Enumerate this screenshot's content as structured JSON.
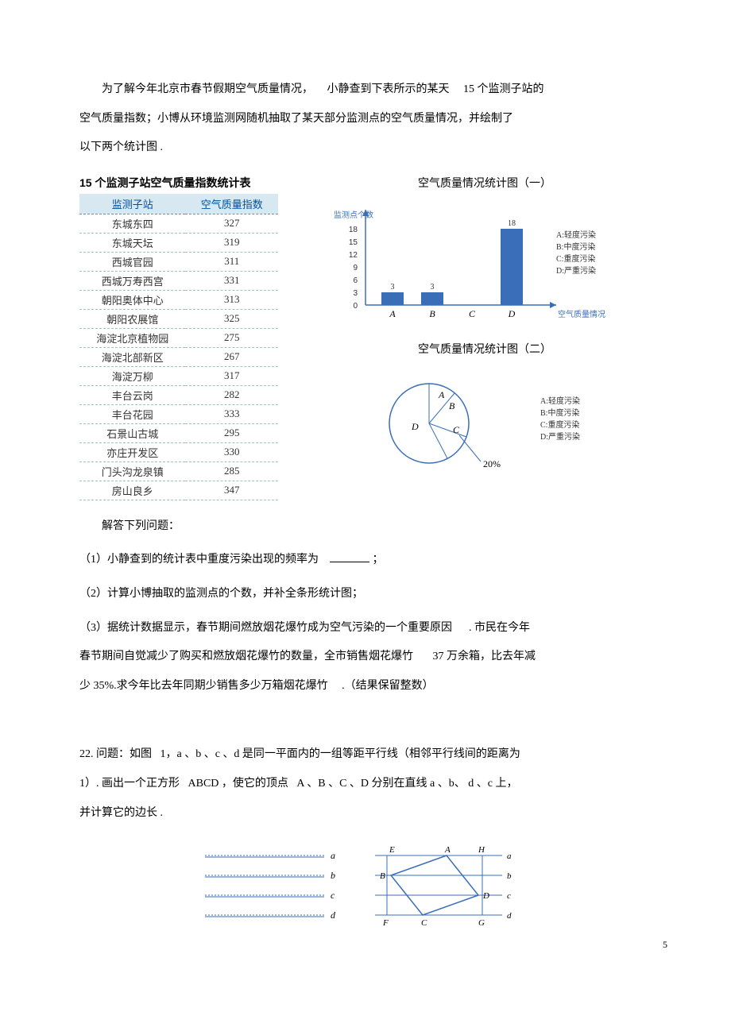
{
  "intro": {
    "p1_a": "为了解今年北京市春节假期空气质量情况，",
    "p1_b": "小静查到下表所示的某天",
    "p1_c": "15 个监测子站的",
    "p2": "空气质量指数；小博从环境监测网随机抽取了某天部分监测点的空气质量情况，并绘制了",
    "p3": "以下两个统计图  ."
  },
  "table": {
    "title": "15 个监测子站空气质量指数统计表",
    "col1": "监测子站",
    "col2": "空气质量指数",
    "rows": [
      {
        "site": "东城东四",
        "aqi": "327"
      },
      {
        "site": "东城天坛",
        "aqi": "319"
      },
      {
        "site": "西城官园",
        "aqi": "311"
      },
      {
        "site": "西城万寿西宫",
        "aqi": "331"
      },
      {
        "site": "朝阳奥体中心",
        "aqi": "313"
      },
      {
        "site": "朝阳农展馆",
        "aqi": "325"
      },
      {
        "site": "海淀北京植物园",
        "aqi": "275"
      },
      {
        "site": "海淀北部新区",
        "aqi": "267"
      },
      {
        "site": "海淀万柳",
        "aqi": "317"
      },
      {
        "site": "丰台云岗",
        "aqi": "282"
      },
      {
        "site": "丰台花园",
        "aqi": "333"
      },
      {
        "site": "石景山古城",
        "aqi": "295"
      },
      {
        "site": "亦庄开发区",
        "aqi": "330"
      },
      {
        "site": "门头沟龙泉镇",
        "aqi": "285"
      },
      {
        "site": "房山良乡",
        "aqi": "347"
      }
    ]
  },
  "chart1": {
    "title": "空气质量情况统计图（一）",
    "ylabel": "监测点个数",
    "xlabel": "空气质量情况",
    "ticks": [
      0,
      3,
      6,
      9,
      12,
      15,
      18
    ],
    "categories": [
      "A",
      "B",
      "C",
      "D"
    ],
    "values": [
      3,
      3,
      null,
      18
    ],
    "bar_color": "#3a6fb8",
    "legend": [
      "A:轻度污染",
      "B:中度污染",
      "C:重度污染",
      "D:严重污染"
    ],
    "overflow_label": "18"
  },
  "chart2": {
    "title": "空气质量情况统计图（二）",
    "labels": [
      "A",
      "B",
      "C",
      "D"
    ],
    "shown_percent": "20%",
    "legend": [
      "A:轻度污染",
      "B:中度污染",
      "C:重度污染",
      "D:严重污染"
    ],
    "colors": {
      "line": "#3a6fb8",
      "fill": "#ffffff"
    }
  },
  "questions": {
    "header": "解答下列问题：",
    "q1": "（1）小静查到的统计表中重度污染出现的频率为",
    "q1_end": "；",
    "q2": "（2）计算小博抽取的监测点的个数，并补全条形统计图；",
    "q3a": "（3）据统计数据显示，春节期间燃放烟花爆竹成为空气污染的一个重要原因",
    "q3a_end": ". 市民在今年",
    "q3b": "春节期间自觉减少了购买和燃放烟花爆竹的数量，全市销售烟花爆竹",
    "q3b_num": "37 万余箱，比去年减",
    "q3c": "少 35%.求今年比去年同期少销售多少万箱烟花爆竹",
    "q3c_end": ".（结果保留整数）"
  },
  "problem22": {
    "num": "22.",
    "p1_a": "问题：如图",
    "p1_b": "1，a 、b 、c 、d 是同一平面内的一组等距平行线（相邻平行线间的距离为",
    "p2_a": "1）. 画出一个正方形",
    "p2_b": "ABCD ，使它的顶点",
    "p2_c": "A 、B 、C 、D 分别在直线  a 、b、 d 、c 上，",
    "p3": "并计算它的边长  .",
    "fig1_labels": [
      "a",
      "b",
      "c",
      "d"
    ],
    "fig2_labels": {
      "E": "E",
      "A": "A",
      "H": "H",
      "B": "B",
      "D": "D",
      "F": "F",
      "C": "C",
      "G": "G",
      "a": "a",
      "b": "b",
      "c": "c",
      "d": "d"
    }
  },
  "page_num": "5"
}
